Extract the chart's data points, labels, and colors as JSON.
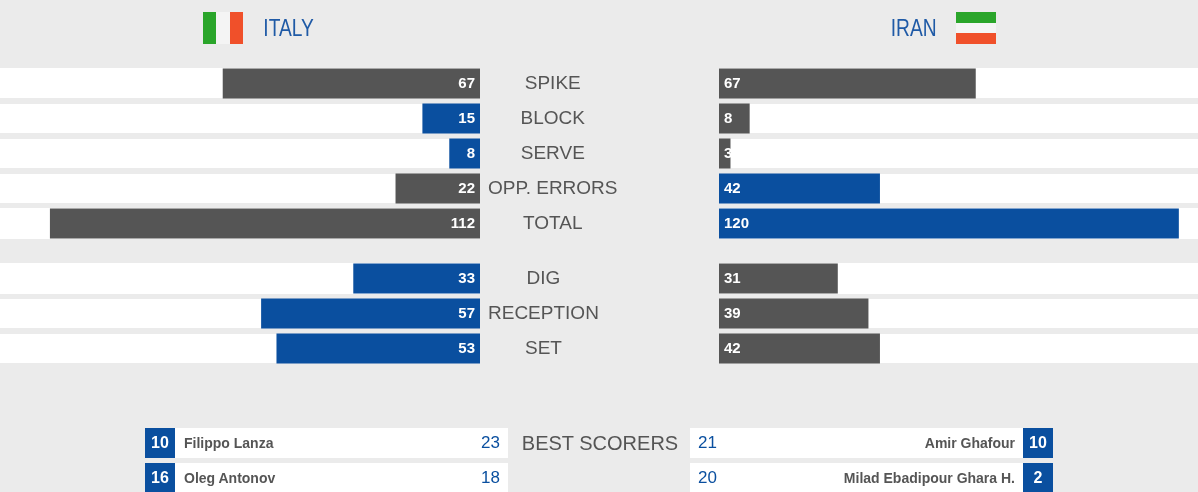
{
  "chart_data": [
    {
      "type": "bar",
      "orientation": "horizontal",
      "title": "ITALY",
      "categories": [
        "SPIKE",
        "BLOCK",
        "SERVE",
        "OPP. ERRORS",
        "TOTAL"
      ],
      "values": [
        67,
        15,
        8,
        22,
        112
      ],
      "colors": [
        "#555555",
        "#0a4f9f",
        "#0a4f9f",
        "#555555",
        "#555555"
      ],
      "xlim": [
        125,
        0
      ],
      "tick_labels": "y",
      "data_labels": true
    },
    {
      "type": "bar",
      "orientation": "horizontal",
      "title": "IRAN",
      "categories": [
        null,
        null,
        null,
        null,
        null
      ],
      "values": [
        67,
        8,
        3,
        42,
        120
      ],
      "colors": [
        "#555555",
        "#555555",
        "#555555",
        "#0a4f9f",
        "#0a4f9f"
      ],
      "xlim": [
        0,
        125
      ],
      "tick_labels": false,
      "data_labels": true
    },
    {
      "type": "bar",
      "orientation": "horizontal",
      "categories": [
        "DIG",
        "RECEPTION",
        "SET"
      ],
      "values": [
        33,
        57,
        53
      ],
      "colors": [
        "#0a4f9f",
        "#0a4f9f",
        "#0a4f9f"
      ],
      "xlim": [
        125,
        0
      ],
      "tick_labels": "y",
      "data_labels": true
    },
    {
      "type": "bar",
      "orientation": "horizontal",
      "categories": [
        null,
        null,
        null
      ],
      "values": [
        31,
        39,
        42
      ],
      "colors": [
        "#555555",
        "#555555",
        "#555555"
      ],
      "xlim": [
        0,
        125
      ],
      "tick_labels": false,
      "data_labels": true
    },
    {
      "type": "other",
      "title": "BEST SCORERS",
      "annotations": [
        "10",
        "Filippo Lanza",
        "23",
        "21",
        "Amir Ghafour",
        "10",
        "16",
        "Oleg Antonov",
        "18",
        "20",
        "Milad Ebadipour Ghara H.",
        "2"
      ]
    }
  ]
}
